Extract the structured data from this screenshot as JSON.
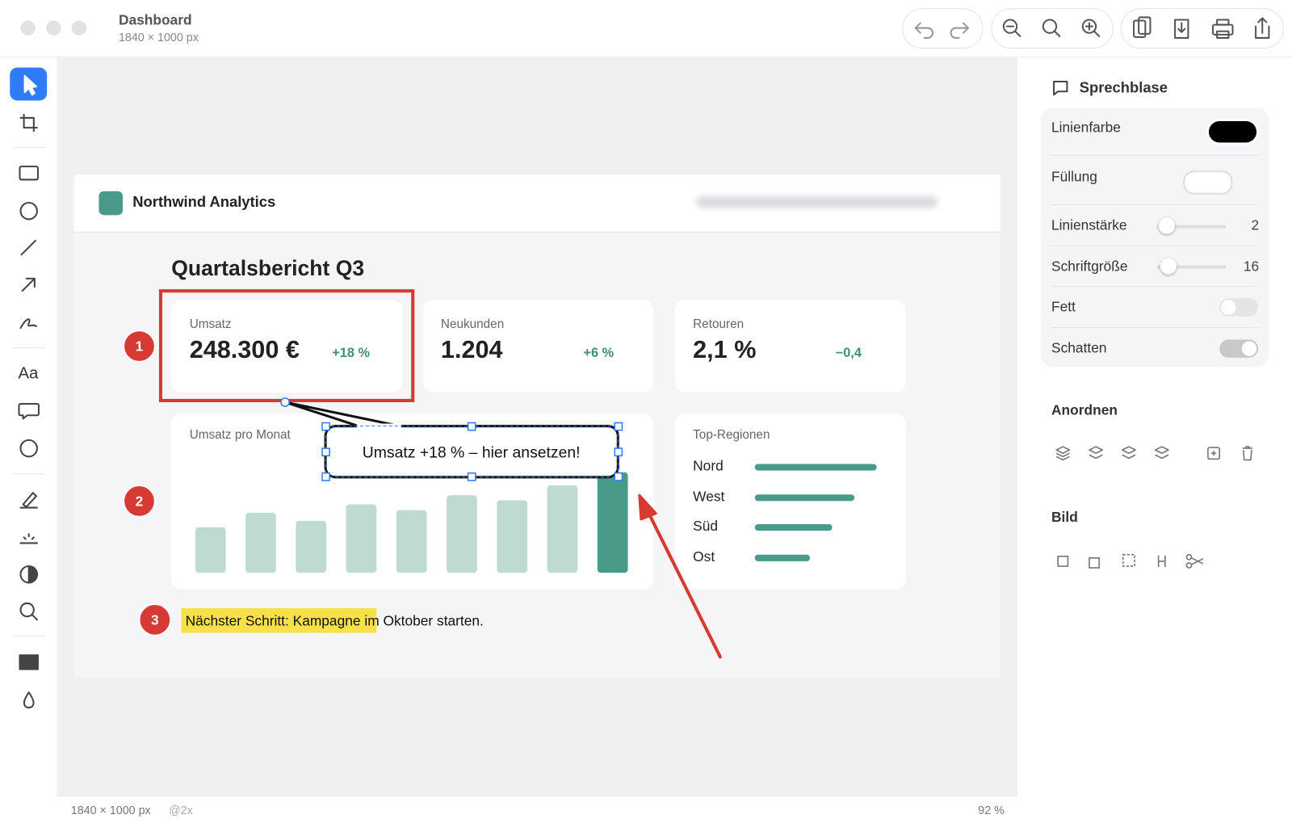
{
  "window": {
    "title": "Dashboard",
    "size": "1840 × 1000 px"
  },
  "tools": {
    "text_tool": "Aa"
  },
  "canvas": {
    "brand": "Northwind Analytics",
    "report_title": "Quartalsbericht Q3",
    "kpis": [
      {
        "label": "Umsatz",
        "value": "248.300 €",
        "delta": "+18 %"
      },
      {
        "label": "Neukunden",
        "value": "1.204",
        "delta": "+6 %"
      },
      {
        "label": "Retouren",
        "value": "2,1 %",
        "delta": "−0,4"
      }
    ],
    "monthly_chart": {
      "title": "Umsatz pro Monat"
    },
    "regions": {
      "title": "Top-Regionen",
      "items": [
        "Nord",
        "West",
        "Süd",
        "Ost"
      ]
    },
    "callout": "Umsatz +18 % – hier ansetzen!",
    "markers": [
      1,
      2,
      3
    ],
    "note": {
      "highlight": "Nächster Schritt: Kampagne",
      "rest": "im Oktober starten."
    }
  },
  "panel": {
    "title": "Sprechblase",
    "properties": [
      {
        "label": "Linienfarbe"
      },
      {
        "label": "Füllung"
      },
      {
        "label": "Linienstärke",
        "value": 2
      },
      {
        "label": "Schriftgröße",
        "value": 16
      },
      {
        "label": "Fett"
      },
      {
        "label": "Schatten"
      }
    ],
    "arrange": "Anordnen",
    "image": "Bild"
  },
  "status": {
    "size": "1840 × 1000 px",
    "scale": "@2x",
    "zoom": "92 %"
  }
}
